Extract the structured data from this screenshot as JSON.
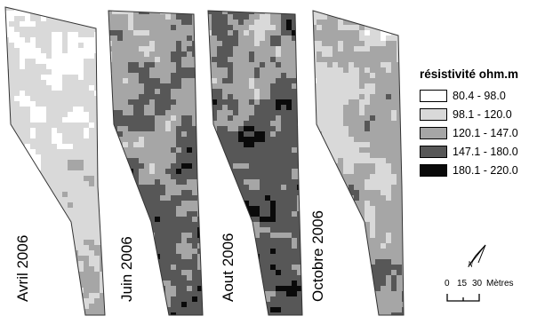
{
  "maps": [
    {
      "date_label": "Avril 2006"
    },
    {
      "date_label": "Juin 2006"
    },
    {
      "date_label": "Aout 2006"
    },
    {
      "date_label": "Octobre 2006"
    }
  ],
  "legend": {
    "title": "résistivité ohm.m",
    "classes": [
      {
        "label": "80.4 - 98.0",
        "color": "#ffffff"
      },
      {
        "label": "98.1 - 120.0",
        "color": "#d9d9d9"
      },
      {
        "label": "120.1 - 147.0",
        "color": "#a6a6a6"
      },
      {
        "label": "147.1 - 180.0",
        "color": "#575757"
      },
      {
        "label": "180.1 - 220.0",
        "color": "#0a0a0a"
      }
    ]
  },
  "scale_bar": {
    "ticks": [
      "0",
      "15",
      "30"
    ],
    "unit": "Mètres"
  },
  "north_arrow": {
    "icon": "north-arrow-icon"
  }
}
